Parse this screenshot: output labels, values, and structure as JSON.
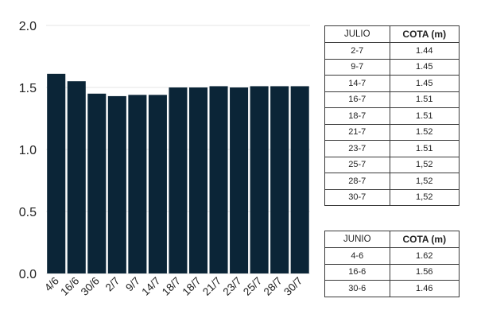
{
  "chart_data": {
    "type": "bar",
    "categories": [
      "4/6",
      "16/6",
      "30/6",
      "2/7",
      "9/7",
      "14/7",
      "18/7",
      "18/7",
      "21/7",
      "23/7",
      "25/7",
      "28/7",
      "30/7"
    ],
    "values": [
      1.61,
      1.55,
      1.45,
      1.43,
      1.44,
      1.44,
      1.5,
      1.5,
      1.51,
      1.5,
      1.51,
      1.51,
      1.51
    ],
    "title": "",
    "xlabel": "",
    "ylabel": "",
    "ylim": [
      0,
      2.0
    ],
    "yticks": [
      "0.0",
      "0.5",
      "1.0",
      "1.5",
      "2.0"
    ],
    "grid": true,
    "bar_color": "#0b2537"
  },
  "tables": {
    "julio": {
      "headers": [
        "JULIO",
        "COTA (m)"
      ],
      "rows": [
        [
          "2-7",
          "1.44"
        ],
        [
          "9-7",
          "1.45"
        ],
        [
          "14-7",
          "1.45"
        ],
        [
          "16-7",
          "1.51"
        ],
        [
          "18-7",
          "1.51"
        ],
        [
          "21-7",
          "1.52"
        ],
        [
          "23-7",
          "1.51"
        ],
        [
          "25-7",
          "1,52"
        ],
        [
          "28-7",
          "1,52"
        ],
        [
          "30-7",
          "1,52"
        ]
      ]
    },
    "junio": {
      "headers": [
        "JUNIO",
        "COTA (m)"
      ],
      "rows": [
        [
          "4-6",
          "1.62"
        ],
        [
          "16-6",
          "1.56"
        ],
        [
          "30-6",
          "1.46"
        ]
      ]
    }
  }
}
